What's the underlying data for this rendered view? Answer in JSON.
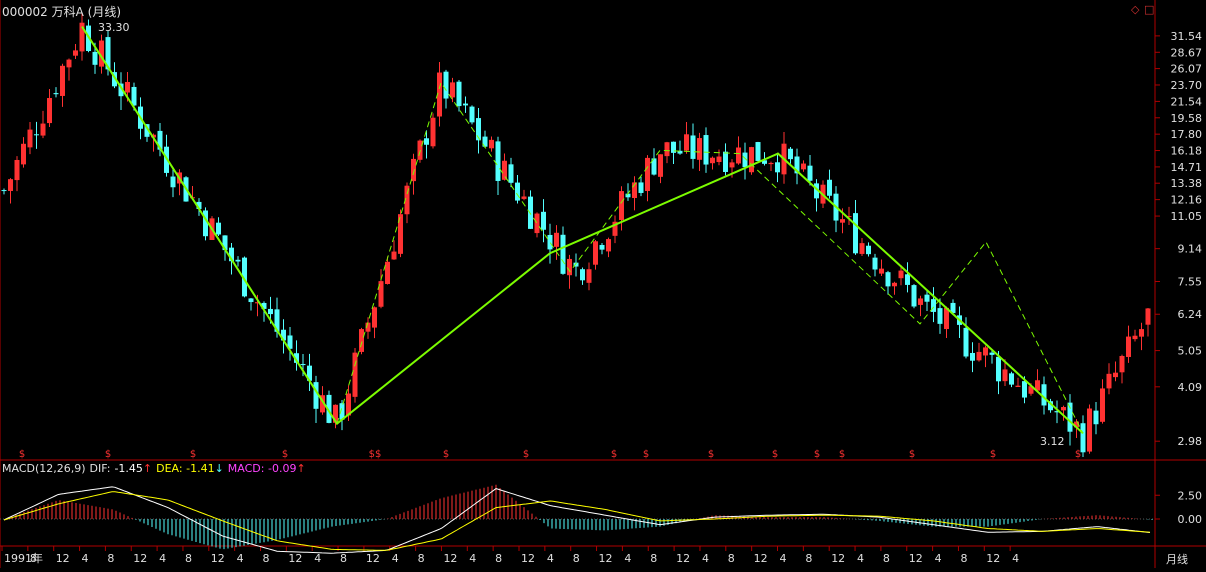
{
  "window": {
    "title": "000002 万科A (月线)",
    "buttons": [
      "◇",
      "□"
    ]
  },
  "colors": {
    "up": "#ff3232",
    "down": "#54ffff",
    "axis": "#b00000",
    "trend": "#7cfc00",
    "dif": "#ffffff",
    "dea": "#ffff00",
    "macd": "#ff44ff"
  },
  "macd_header": {
    "name": "MACD(12,26,9)",
    "dif_label": "DIF:",
    "dif_value": "-1.45",
    "dif_arrow": "↑",
    "dea_label": "DEA:",
    "dea_value": "-1.41",
    "dea_arrow": "↓",
    "macd_label": "MACD:",
    "macd_value": "-0.09",
    "macd_arrow": "↑"
  },
  "period_label": "月线",
  "annotations": {
    "high": "33.30",
    "low": "3.12"
  },
  "chart_data": [
    {
      "type": "candlestick",
      "title": "000002 万科A (月线)",
      "scale": "log",
      "ylim": [
        2.75,
        35
      ],
      "y_ticks": [
        31.54,
        28.67,
        26.07,
        23.7,
        21.54,
        19.58,
        17.8,
        16.18,
        14.71,
        13.38,
        12.16,
        11.05,
        9.14,
        7.55,
        6.24,
        5.05,
        4.09,
        2.98
      ],
      "x_tick_labels": [
        "1991年",
        "8",
        "12",
        "4",
        "8",
        "12",
        "4",
        "8",
        "12",
        "4",
        "8",
        "12",
        "4",
        "8",
        "12",
        "4",
        "8",
        "12",
        "4",
        "8",
        "12",
        "4",
        "8",
        "12",
        "4",
        "8",
        "12",
        "4",
        "8",
        "12",
        "4",
        "8",
        "12",
        "4",
        "8",
        "12",
        "4",
        "8",
        "12",
        "4"
      ],
      "grid": false,
      "anchors": [
        {
          "label": "high",
          "value": 33.3
        },
        {
          "label": "start",
          "value": 12.5
        },
        {
          "label": "low1",
          "value": 3.3
        },
        {
          "label": "peak2",
          "value": 24.0
        },
        {
          "label": "sideways",
          "value": 8.0
        },
        {
          "label": "peak3",
          "value": 16.2
        },
        {
          "label": "peak4",
          "value": 15.9
        },
        {
          "label": "mid",
          "value": 6.5
        },
        {
          "label": "low",
          "value": 3.12
        },
        {
          "label": "end",
          "value": 6.4
        }
      ],
      "trend_lines": [
        {
          "style": "solid",
          "points": [
            33.3,
            3.3,
            8.9,
            15.9,
            3.12
          ]
        },
        {
          "style": "dashed",
          "points": [
            3.3,
            24.0,
            8.0,
            16.2,
            15.9,
            5.9,
            9.5,
            3.12
          ]
        }
      ],
      "markers": [
        "$",
        "$",
        "$",
        "$",
        "$$",
        "$",
        "$",
        "$",
        "$",
        "$",
        "$",
        "$",
        "$",
        "$",
        "$",
        "$"
      ]
    },
    {
      "type": "line",
      "title": "MACD(12,26,9)",
      "y_ticks": [
        2.5,
        0.0
      ],
      "series": [
        {
          "name": "DIF",
          "values": [
            -0.1,
            2.6,
            3.4,
            1.2,
            -1.8,
            -3.4,
            -3.6,
            -3.3,
            -1.0,
            3.2,
            1.4,
            0.4,
            -0.6,
            0.2,
            0.4,
            0.5,
            0.2,
            -0.6,
            -1.4,
            -1.3,
            -0.8,
            -1.45
          ]
        },
        {
          "name": "DEA",
          "values": [
            -0.1,
            1.6,
            2.9,
            2.0,
            -0.2,
            -2.3,
            -3.2,
            -3.3,
            -2.1,
            1.2,
            1.9,
            1.0,
            -0.2,
            0.0,
            0.3,
            0.4,
            0.3,
            -0.2,
            -1.0,
            -1.3,
            -1.0,
            -1.41
          ]
        },
        {
          "name": "MACD",
          "values": [
            0.0,
            2.0,
            1.0,
            -1.6,
            -3.2,
            -2.2,
            -0.8,
            0.0,
            2.2,
            3.6,
            -1.0,
            -1.2,
            -0.8,
            0.4,
            0.2,
            0.2,
            -0.2,
            -0.8,
            -0.8,
            0.0,
            0.4,
            -0.09
          ]
        }
      ]
    }
  ]
}
